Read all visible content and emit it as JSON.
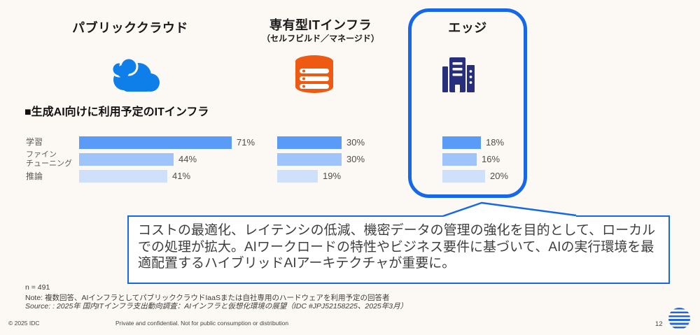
{
  "columns": [
    {
      "title": "パブリッククラウド",
      "subtitle": "",
      "icon": "cloud-icon",
      "highlighted": false
    },
    {
      "title": "専有型ITインフラ",
      "subtitle": "（セルフビルド／マネージド）",
      "icon": "database-icon",
      "highlighted": false
    },
    {
      "title": "エッジ",
      "subtitle": "",
      "icon": "building-icon",
      "highlighted": true
    }
  ],
  "section_title": "■生成AI向けに利用予定のITインフラ",
  "chart_data": {
    "type": "bar",
    "orientation": "horizontal",
    "title": "生成AI向けに利用予定のITインフラ",
    "categories": [
      "学習",
      "ファインチューニング",
      "推論"
    ],
    "categories_display": [
      "学習",
      "ファイン\nチューニング",
      "推論"
    ],
    "series": [
      {
        "name": "パブリッククラウド",
        "values": [
          71,
          44,
          41
        ]
      },
      {
        "name": "専有型ITインフラ（セルフビルド／マネージド）",
        "values": [
          30,
          30,
          19
        ]
      },
      {
        "name": "エッジ",
        "values": [
          18,
          16,
          20
        ]
      }
    ],
    "unit": "%",
    "xlim": [
      0,
      100
    ],
    "grid": false,
    "legend": false,
    "bar_colors": [
      "#5B9BF8",
      "#9EC4FA",
      "#CFE0FB"
    ]
  },
  "callout": {
    "text": "コストの最適化、レイテンシの低減、機密データの管理の強化を目的として、ローカルでの処理が拡大。AIワークロードの特性やビジネス要件に基づいて、AIの実行環境を最適配置するハイブリッドAIアーキテクチャが重要に。"
  },
  "footnotes": {
    "n": "n = 491",
    "note": "Note: 複数回答、AIインフラとしてパブリッククラウドIaaSまたは自社専用のハードウェアを利用予定の回答者",
    "source": "Source: : 2025年 国内ITインフラ支出動向調査：AIインフラと仮想化環境の展望（IDC #JPJ52158225、2025年3月）"
  },
  "footer": {
    "copyright": "© 2025 IDC",
    "confidential": "Private and confidential. Not for public consumption or distribution",
    "page_number": "12",
    "logo": "idc-globe-logo"
  },
  "colors": {
    "accent_blue": "#1668E8",
    "cloud_blue": "#0E7EE8",
    "database_orange": "#EF5A13",
    "building_navy": "#272E7C",
    "background": "#FCF9F4",
    "logo_blue": "#2264E0"
  }
}
